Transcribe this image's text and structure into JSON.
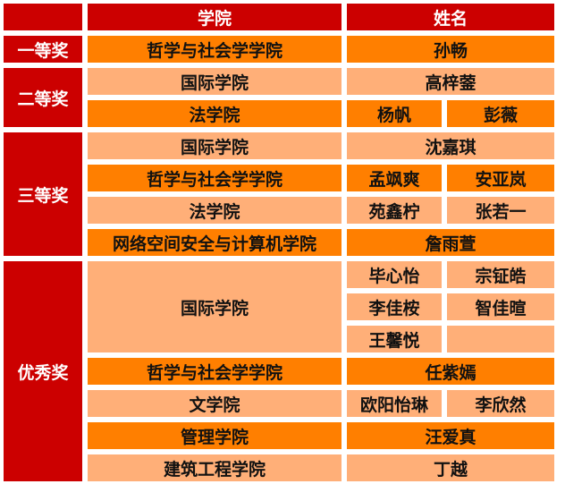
{
  "colors": {
    "header": "#CC0000",
    "award": "#CC0000",
    "dark_row": "#FF7F00",
    "light_row": "#FFAF78"
  },
  "header": {
    "corner": "",
    "college": "学院",
    "name": "姓名"
  },
  "awards": [
    {
      "label": "一等奖",
      "rows": 1
    },
    {
      "label": "二等奖",
      "rows": 2
    },
    {
      "label": "三等奖",
      "rows": 4
    },
    {
      "label": "优秀奖",
      "rows": 7
    }
  ],
  "colleges": [
    {
      "label": "哲学与社会学学院",
      "rows": 1,
      "tone": "dark"
    },
    {
      "label": "国际学院",
      "rows": 1,
      "tone": "light"
    },
    {
      "label": "法学院",
      "rows": 1,
      "tone": "dark"
    },
    {
      "label": "国际学院",
      "rows": 1,
      "tone": "light"
    },
    {
      "label": "哲学与社会学学院",
      "rows": 1,
      "tone": "dark"
    },
    {
      "label": "法学院",
      "rows": 1,
      "tone": "light"
    },
    {
      "label": "网络空间安全与计算机学院",
      "rows": 1,
      "tone": "dark"
    },
    {
      "label": "国际学院",
      "rows": 3,
      "tone": "light"
    },
    {
      "label": "哲学与社会学学院",
      "rows": 1,
      "tone": "dark"
    },
    {
      "label": "文学院",
      "rows": 1,
      "tone": "light"
    },
    {
      "label": "管理学院",
      "rows": 1,
      "tone": "dark"
    },
    {
      "label": "建筑工程学院",
      "rows": 1,
      "tone": "light"
    }
  ],
  "name_rows": [
    {
      "tone": "dark",
      "names": [
        "孙畅"
      ]
    },
    {
      "tone": "light",
      "names": [
        "高梓蓥"
      ]
    },
    {
      "tone": "dark",
      "names": [
        "杨帆",
        "彭薇"
      ]
    },
    {
      "tone": "light",
      "names": [
        "沈嘉琪"
      ]
    },
    {
      "tone": "dark",
      "names": [
        "孟飒爽",
        "安亚岚"
      ]
    },
    {
      "tone": "light",
      "names": [
        "苑鑫柠",
        "张若一"
      ]
    },
    {
      "tone": "dark",
      "names": [
        "詹雨萱"
      ]
    },
    {
      "tone": "light",
      "names": [
        "毕心怡",
        "宗钲皓"
      ]
    },
    {
      "tone": "light",
      "names": [
        "李佳桉",
        "智佳暄"
      ]
    },
    {
      "tone": "light",
      "names": [
        "王馨悦",
        ""
      ]
    },
    {
      "tone": "dark",
      "names": [
        "任紫嫣"
      ]
    },
    {
      "tone": "light",
      "names": [
        "欧阳怡琳",
        "李欣然"
      ]
    },
    {
      "tone": "dark",
      "names": [
        "汪爱真"
      ]
    },
    {
      "tone": "light",
      "names": [
        "丁越"
      ]
    }
  ]
}
